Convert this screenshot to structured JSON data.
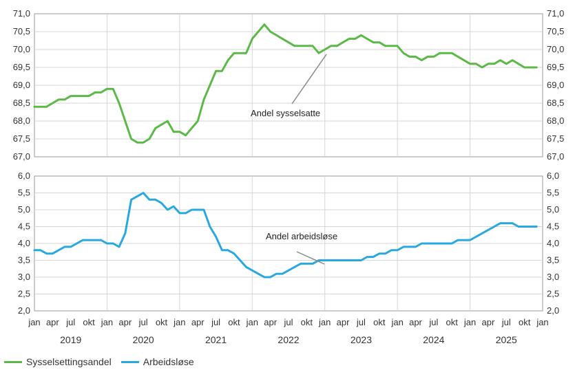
{
  "colors": {
    "employment": "#5ab947",
    "unemployment": "#29a8e0"
  },
  "legend": {
    "employment": "Sysselsettingsandel",
    "unemployment": "Arbeidsløse"
  },
  "chart_data": [
    {
      "type": "line",
      "panel": "top",
      "ylim": [
        67.0,
        71.0
      ],
      "yticks": [
        "71,0",
        "70,5",
        "70,0",
        "69,5",
        "69,0",
        "68,5",
        "68,0",
        "67,5",
        "67,0"
      ],
      "annotation": "Andel sysselsatte",
      "series": [
        {
          "name": "Sysselsettingsandel",
          "x_start": "2019-01",
          "values": [
            68.4,
            68.4,
            68.4,
            68.5,
            68.6,
            68.6,
            68.7,
            68.7,
            68.7,
            68.7,
            68.8,
            68.8,
            68.9,
            68.9,
            68.5,
            68.0,
            67.5,
            67.4,
            67.4,
            67.5,
            67.8,
            67.9,
            68.0,
            67.7,
            67.7,
            67.6,
            67.8,
            68.0,
            68.6,
            69.0,
            69.4,
            69.4,
            69.7,
            69.9,
            69.9,
            69.9,
            70.3,
            70.5,
            70.7,
            70.5,
            70.4,
            70.3,
            70.2,
            70.1,
            70.1,
            70.1,
            70.1,
            69.9,
            70.0,
            70.1,
            70.1,
            70.2,
            70.3,
            70.3,
            70.4,
            70.3,
            70.2,
            70.2,
            70.1,
            70.1,
            70.1,
            69.9,
            69.8,
            69.8,
            69.7,
            69.8,
            69.8,
            69.9,
            69.9,
            69.9,
            69.8,
            69.7,
            69.6,
            69.6,
            69.5,
            69.6,
            69.6,
            69.7,
            69.6,
            69.7,
            69.6,
            69.5,
            69.5,
            69.5
          ]
        }
      ]
    },
    {
      "type": "line",
      "panel": "bottom",
      "ylim": [
        2.0,
        6.0
      ],
      "yticks": [
        "6,0",
        "5,5",
        "5,0",
        "4,5",
        "4,0",
        "3,5",
        "3,0",
        "2,5",
        "2,0"
      ],
      "annotation": "Andel arbeidsløse",
      "series": [
        {
          "name": "Arbeidsløse",
          "x_start": "2019-01",
          "values": [
            3.8,
            3.8,
            3.7,
            3.7,
            3.8,
            3.9,
            3.9,
            4.0,
            4.1,
            4.1,
            4.1,
            4.1,
            4.0,
            4.0,
            3.9,
            4.3,
            5.3,
            5.4,
            5.5,
            5.3,
            5.3,
            5.2,
            5.0,
            5.1,
            4.9,
            4.9,
            5.0,
            5.0,
            5.0,
            4.5,
            4.2,
            3.8,
            3.8,
            3.7,
            3.5,
            3.3,
            3.2,
            3.1,
            3.0,
            3.0,
            3.1,
            3.1,
            3.2,
            3.3,
            3.4,
            3.4,
            3.4,
            3.5,
            3.5,
            3.5,
            3.5,
            3.5,
            3.5,
            3.5,
            3.5,
            3.6,
            3.6,
            3.7,
            3.7,
            3.8,
            3.8,
            3.9,
            3.9,
            3.9,
            4.0,
            4.0,
            4.0,
            4.0,
            4.0,
            4.0,
            4.1,
            4.1,
            4.1,
            4.2,
            4.3,
            4.4,
            4.5,
            4.6,
            4.6,
            4.6,
            4.5,
            4.5,
            4.5,
            4.5
          ]
        }
      ]
    }
  ],
  "x_axis": {
    "month_labels": [
      "jan",
      "apr",
      "jul",
      "okt",
      "jan",
      "apr",
      "jul",
      "okt",
      "jan",
      "apr",
      "jul",
      "okt",
      "jan",
      "apr",
      "jul",
      "okt",
      "jan",
      "apr",
      "jul",
      "okt",
      "jan",
      "apr",
      "jul",
      "okt",
      "jan",
      "apr",
      "jul",
      "okt",
      "jan"
    ],
    "year_labels": [
      "2019",
      "2020",
      "2021",
      "2022",
      "2023",
      "2024",
      "2025"
    ]
  }
}
